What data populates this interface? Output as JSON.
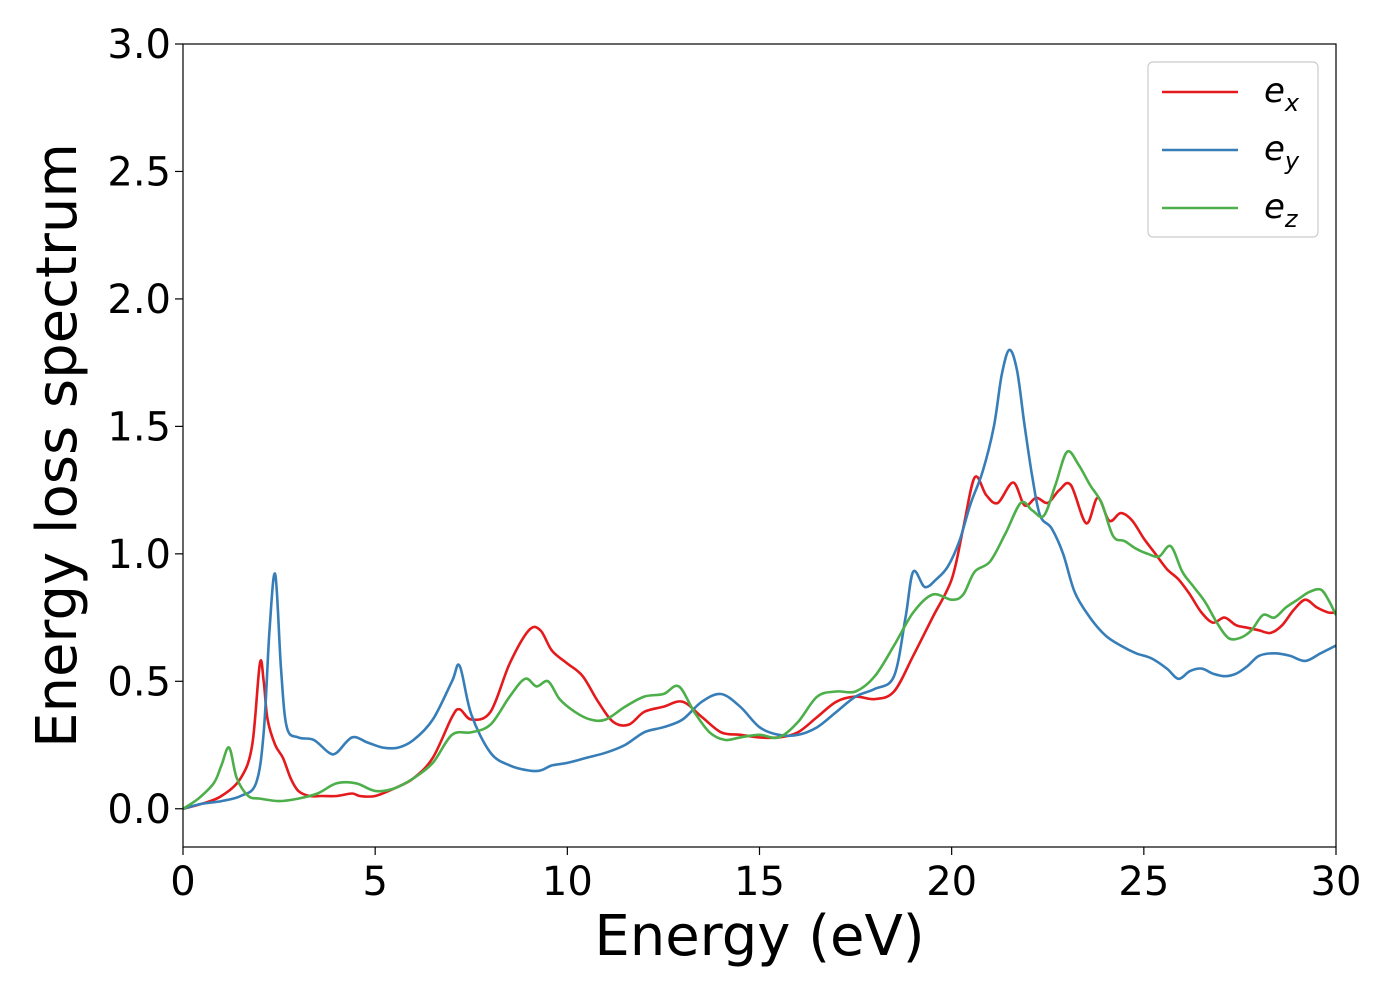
{
  "chart_data": {
    "type": "line",
    "title": "",
    "xlabel": "Energy (eV)",
    "ylabel": "Energy loss spectrum",
    "xlim": [
      0,
      30
    ],
    "ylim": [
      -0.15,
      3.0
    ],
    "xticks": [
      0,
      5,
      10,
      15,
      20,
      25,
      30
    ],
    "xtick_labels": [
      "0",
      "5",
      "10",
      "15",
      "20",
      "25",
      "30"
    ],
    "yticks": [
      0.0,
      0.5,
      1.0,
      1.5,
      2.0,
      2.5,
      3.0
    ],
    "ytick_labels": [
      "0.0",
      "0.5",
      "1.0",
      "1.5",
      "2.0",
      "2.5",
      "3.0"
    ],
    "grid": false,
    "legend_position": "top-right",
    "series": [
      {
        "name": "e",
        "subscript": "x",
        "color": "#e41a1c",
        "x": [
          0,
          0.5,
          1.0,
          1.5,
          1.8,
          2.0,
          2.1,
          2.2,
          2.4,
          2.6,
          2.8,
          3.0,
          3.3,
          3.6,
          4.0,
          4.4,
          4.6,
          5.0,
          5.5,
          6.0,
          6.5,
          7.0,
          7.2,
          7.5,
          8.0,
          8.5,
          9.0,
          9.3,
          9.6,
          10.0,
          10.4,
          10.8,
          11.2,
          11.6,
          12.0,
          12.5,
          13.0,
          13.5,
          14.0,
          14.5,
          15.0,
          15.5,
          16.0,
          16.5,
          17.0,
          17.5,
          18.0,
          18.5,
          19.0,
          19.5,
          20.0,
          20.3,
          20.6,
          20.9,
          21.2,
          21.6,
          21.9,
          22.2,
          22.5,
          22.8,
          23.1,
          23.5,
          23.8,
          24.1,
          24.4,
          24.7,
          25.0,
          25.3,
          25.6,
          25.9,
          26.2,
          26.5,
          26.8,
          27.1,
          27.4,
          27.7,
          28.0,
          28.3,
          28.6,
          28.9,
          29.2,
          29.5,
          29.8,
          30.0
        ],
        "y": [
          0.0,
          0.02,
          0.05,
          0.12,
          0.25,
          0.57,
          0.5,
          0.35,
          0.25,
          0.2,
          0.12,
          0.07,
          0.05,
          0.05,
          0.05,
          0.06,
          0.05,
          0.05,
          0.08,
          0.12,
          0.2,
          0.36,
          0.39,
          0.35,
          0.38,
          0.57,
          0.7,
          0.7,
          0.62,
          0.57,
          0.52,
          0.42,
          0.34,
          0.33,
          0.38,
          0.4,
          0.42,
          0.36,
          0.3,
          0.29,
          0.28,
          0.28,
          0.3,
          0.36,
          0.42,
          0.44,
          0.43,
          0.46,
          0.6,
          0.75,
          0.9,
          1.1,
          1.3,
          1.23,
          1.2,
          1.28,
          1.19,
          1.22,
          1.2,
          1.25,
          1.27,
          1.12,
          1.22,
          1.13,
          1.16,
          1.13,
          1.06,
          1.0,
          0.94,
          0.9,
          0.84,
          0.77,
          0.73,
          0.75,
          0.72,
          0.71,
          0.7,
          0.69,
          0.72,
          0.78,
          0.82,
          0.79,
          0.77,
          0.77
        ]
      },
      {
        "name": "e",
        "subscript": "y",
        "color": "#377eb8",
        "x": [
          0,
          0.5,
          1.0,
          1.5,
          1.9,
          2.1,
          2.25,
          2.4,
          2.55,
          2.7,
          3.0,
          3.4,
          3.8,
          4.0,
          4.4,
          4.8,
          5.2,
          5.6,
          6.0,
          6.5,
          7.0,
          7.2,
          7.5,
          8.0,
          8.5,
          9.0,
          9.3,
          9.6,
          10.0,
          10.5,
          11.0,
          11.5,
          12.0,
          12.5,
          13.0,
          13.5,
          14.0,
          14.5,
          15.0,
          15.5,
          16.0,
          16.5,
          17.0,
          17.5,
          18.0,
          18.5,
          18.8,
          19.0,
          19.3,
          19.6,
          19.9,
          20.2,
          20.5,
          20.8,
          21.1,
          21.3,
          21.5,
          21.7,
          21.9,
          22.1,
          22.3,
          22.6,
          22.9,
          23.2,
          23.6,
          24.0,
          24.4,
          24.8,
          25.2,
          25.6,
          25.9,
          26.2,
          26.5,
          26.8,
          27.1,
          27.4,
          27.7,
          28.0,
          28.4,
          28.8,
          29.2,
          29.6,
          30.0
        ],
        "y": [
          0.0,
          0.02,
          0.03,
          0.05,
          0.1,
          0.3,
          0.7,
          0.92,
          0.55,
          0.32,
          0.28,
          0.27,
          0.22,
          0.22,
          0.28,
          0.26,
          0.24,
          0.24,
          0.27,
          0.35,
          0.5,
          0.56,
          0.37,
          0.22,
          0.17,
          0.15,
          0.15,
          0.17,
          0.18,
          0.2,
          0.22,
          0.25,
          0.3,
          0.32,
          0.35,
          0.42,
          0.45,
          0.4,
          0.32,
          0.29,
          0.29,
          0.32,
          0.38,
          0.44,
          0.47,
          0.52,
          0.75,
          0.93,
          0.87,
          0.9,
          0.95,
          1.05,
          1.2,
          1.32,
          1.5,
          1.7,
          1.8,
          1.72,
          1.5,
          1.3,
          1.15,
          1.1,
          1.0,
          0.85,
          0.75,
          0.68,
          0.64,
          0.61,
          0.59,
          0.55,
          0.51,
          0.54,
          0.55,
          0.53,
          0.52,
          0.53,
          0.56,
          0.6,
          0.61,
          0.6,
          0.58,
          0.61,
          0.64
        ]
      },
      {
        "name": "e",
        "subscript": "z",
        "color": "#4daf4a",
        "x": [
          0,
          0.4,
          0.8,
          1.0,
          1.2,
          1.4,
          1.7,
          2.0,
          2.5,
          3.0,
          3.5,
          4.0,
          4.5,
          5.0,
          5.5,
          6.0,
          6.5,
          7.0,
          7.5,
          8.0,
          8.5,
          8.9,
          9.2,
          9.5,
          9.8,
          10.2,
          10.6,
          11.0,
          11.5,
          12.0,
          12.5,
          12.9,
          13.3,
          13.7,
          14.1,
          14.5,
          15.0,
          15.5,
          16.0,
          16.5,
          17.0,
          17.5,
          18.0,
          18.5,
          19.0,
          19.5,
          20.0,
          20.3,
          20.6,
          21.0,
          21.4,
          21.8,
          22.1,
          22.4,
          22.7,
          23.0,
          23.3,
          23.6,
          23.9,
          24.2,
          24.5,
          24.8,
          25.1,
          25.4,
          25.7,
          26.0,
          26.3,
          26.6,
          26.9,
          27.2,
          27.5,
          27.8,
          28.1,
          28.4,
          28.7,
          29.0,
          29.3,
          29.6,
          29.8,
          30.0
        ],
        "y": [
          0.0,
          0.04,
          0.1,
          0.17,
          0.24,
          0.12,
          0.05,
          0.04,
          0.03,
          0.04,
          0.06,
          0.1,
          0.1,
          0.07,
          0.08,
          0.12,
          0.18,
          0.29,
          0.3,
          0.33,
          0.44,
          0.51,
          0.48,
          0.5,
          0.43,
          0.38,
          0.35,
          0.35,
          0.4,
          0.44,
          0.45,
          0.48,
          0.38,
          0.3,
          0.27,
          0.28,
          0.29,
          0.28,
          0.34,
          0.44,
          0.46,
          0.46,
          0.52,
          0.64,
          0.77,
          0.84,
          0.82,
          0.84,
          0.93,
          0.97,
          1.08,
          1.2,
          1.17,
          1.15,
          1.27,
          1.4,
          1.35,
          1.27,
          1.2,
          1.07,
          1.05,
          1.02,
          1.0,
          0.99,
          1.03,
          0.93,
          0.87,
          0.81,
          0.73,
          0.67,
          0.67,
          0.7,
          0.76,
          0.75,
          0.79,
          0.82,
          0.85,
          0.86,
          0.82,
          0.76
        ]
      }
    ]
  }
}
